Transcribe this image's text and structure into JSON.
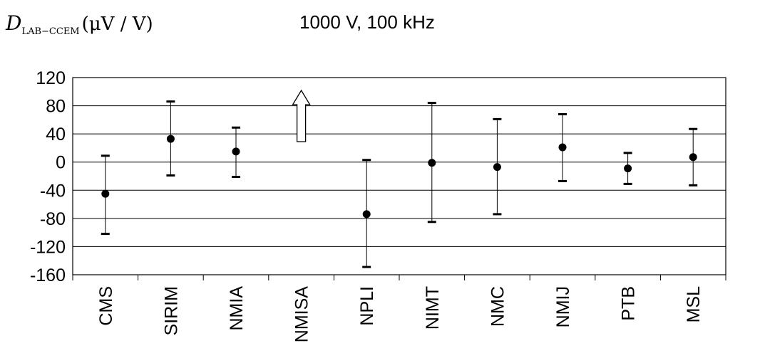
{
  "chart_data": {
    "type": "scatter",
    "title": "1000 V, 100 kHz",
    "ylabel": {
      "symbol": "D",
      "subscript": "LAB−CCEM",
      "unit": "(μV / V)"
    },
    "xlabel": "",
    "ylim": [
      -160,
      120
    ],
    "yticks": [
      "120",
      "80",
      "40",
      "0",
      "-40",
      "-80",
      "-120",
      "-160"
    ],
    "ytick_values": [
      120,
      80,
      40,
      0,
      -40,
      -80,
      -120,
      -160
    ],
    "grid": true,
    "categories": [
      "CMS",
      "SIRIM",
      "NMIA",
      "NMISA",
      "NPLI",
      "NIMT",
      "NMC",
      "NMIJ",
      "PTB",
      "MSL"
    ],
    "points": [
      {
        "lab": "CMS",
        "value": -45,
        "upper": 9,
        "lower": -102
      },
      {
        "lab": "SIRIM",
        "value": 33,
        "upper": 86,
        "lower": -19
      },
      {
        "lab": "NMIA",
        "value": 15,
        "upper": 49,
        "lower": -21
      },
      {
        "lab": "NMISA",
        "value": null,
        "arrow": "up",
        "note": "off scale"
      },
      {
        "lab": "NPLI",
        "value": -74,
        "upper": 3,
        "lower": -149
      },
      {
        "lab": "NIMT",
        "value": -1,
        "upper": 84,
        "lower": -85
      },
      {
        "lab": "NMC",
        "value": -7,
        "upper": 61,
        "lower": -74
      },
      {
        "lab": "NMIJ",
        "value": 21,
        "upper": 68,
        "lower": -27
      },
      {
        "lab": "PTB",
        "value": -9,
        "upper": 13,
        "lower": -31
      },
      {
        "lab": "MSL",
        "value": 7,
        "upper": 47,
        "lower": -33
      }
    ],
    "colors": {
      "marker": "#000000",
      "grid": "#000000",
      "arrow_fill": "#ffffff"
    }
  }
}
